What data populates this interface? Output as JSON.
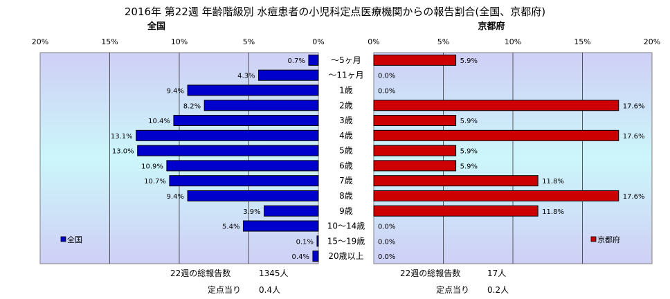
{
  "chart_data": {
    "type": "bar",
    "title": "2016年 第22週 年齢階級別 水痘患者の小児科定点医療機関からの報告割合(全国、京都府)",
    "categories": [
      "～5ヶ月",
      "～11ヶ月",
      "1歳",
      "2歳",
      "3歳",
      "4歳",
      "5歳",
      "6歳",
      "7歳",
      "8歳",
      "9歳",
      "10～14歳",
      "15～19歳",
      "20歳以上"
    ],
    "xlim": [
      0,
      20
    ],
    "tick_labels": [
      "0%",
      "5%",
      "10%",
      "15%",
      "20%"
    ],
    "grid": true,
    "series": [
      {
        "name": "全国",
        "subtitle": "全国",
        "color": "#0000CC",
        "values": [
          0.7,
          4.3,
          9.4,
          8.2,
          10.4,
          13.1,
          13.0,
          10.9,
          10.7,
          9.4,
          3.9,
          5.4,
          0.1,
          0.4
        ],
        "labels": [
          "0.7%",
          "4.3%",
          "9.4%",
          "8.2%",
          "10.4%",
          "13.1%",
          "13.0%",
          "10.9%",
          "10.7%",
          "9.4%",
          "3.9%",
          "5.4%",
          "0.1%",
          "0.4%"
        ],
        "legend_position": "left-bottom"
      },
      {
        "name": "京都府",
        "subtitle": "京都府",
        "color": "#CC0000",
        "values": [
          5.9,
          0.0,
          0.0,
          17.6,
          5.9,
          17.6,
          5.9,
          5.9,
          11.8,
          17.6,
          11.8,
          0.0,
          0.0,
          0.0
        ],
        "labels": [
          "5.9%",
          "0.0%",
          "0.0%",
          "17.6%",
          "5.9%",
          "17.6%",
          "5.9%",
          "5.9%",
          "11.8%",
          "17.6%",
          "11.8%",
          "0.0%",
          "0.0%",
          "0.0%"
        ],
        "legend_position": "right-bottom"
      }
    ]
  },
  "footer": {
    "national": {
      "total_label": "22週の総報告数",
      "total_value": "1345人",
      "per_label": "定点当り",
      "per_value": "0.4人"
    },
    "kyoto": {
      "total_label": "22週の総報告数",
      "total_value": "17人",
      "per_label": "定点当り",
      "per_value": "0.2人"
    }
  }
}
